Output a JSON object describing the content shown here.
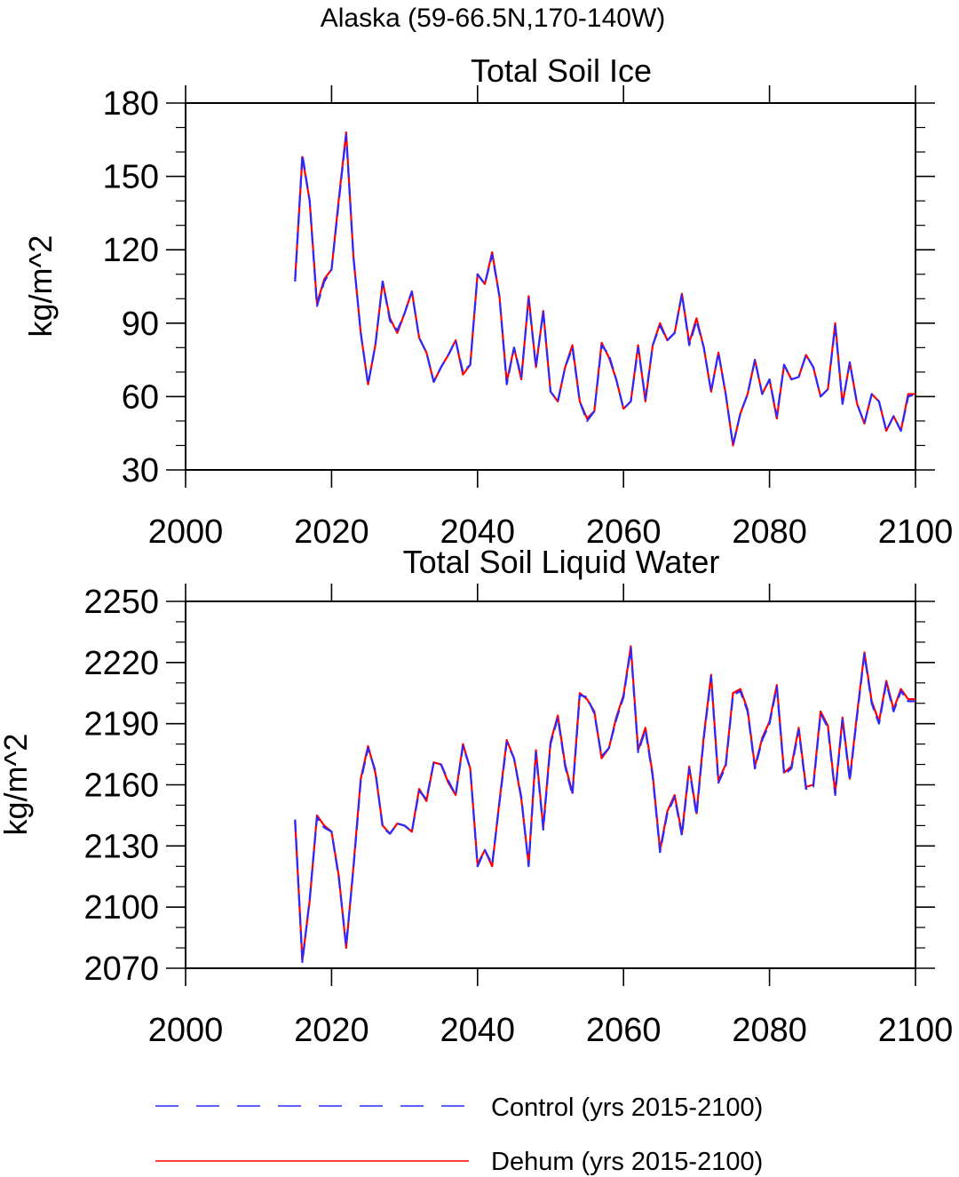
{
  "figure": {
    "suptitle": "Alaska (59-66.5N,170-140W)"
  },
  "legend": [
    {
      "label": "Control (yrs 2015-2100)",
      "color": "#2a2aff",
      "dash": "dashed"
    },
    {
      "label": "Dehum (yrs 2015-2100)",
      "color": "#ff0000",
      "dash": "solid"
    }
  ],
  "chart_data": [
    {
      "type": "line",
      "title": "Total Soil Ice",
      "xlabel": "",
      "ylabel": "kg/m^2",
      "xlim": [
        2000,
        2100
      ],
      "ylim": [
        30,
        180
      ],
      "xticks": [
        2000,
        2020,
        2040,
        2060,
        2080,
        2100
      ],
      "yticks": [
        30,
        60,
        90,
        120,
        150,
        180
      ],
      "x": [
        2015,
        2016,
        2017,
        2018,
        2019,
        2020,
        2021,
        2022,
        2023,
        2024,
        2025,
        2026,
        2027,
        2028,
        2029,
        2030,
        2031,
        2032,
        2033,
        2034,
        2035,
        2036,
        2037,
        2038,
        2039,
        2040,
        2041,
        2042,
        2043,
        2044,
        2045,
        2046,
        2047,
        2048,
        2049,
        2050,
        2051,
        2052,
        2053,
        2054,
        2055,
        2056,
        2057,
        2058,
        2059,
        2060,
        2061,
        2062,
        2063,
        2064,
        2065,
        2066,
        2067,
        2068,
        2069,
        2070,
        2071,
        2072,
        2073,
        2074,
        2075,
        2076,
        2077,
        2078,
        2079,
        2080,
        2081,
        2082,
        2083,
        2084,
        2085,
        2086,
        2087,
        2088,
        2089,
        2090,
        2091,
        2092,
        2093,
        2094,
        2095,
        2096,
        2097,
        2098,
        2099,
        2100
      ],
      "series": [
        {
          "name": "Control (yrs 2015-2100)",
          "values": [
            107,
            159,
            140,
            97,
            107,
            112,
            140,
            167,
            117,
            86,
            65,
            81,
            107,
            91,
            87,
            94,
            103,
            84,
            78,
            66,
            72,
            77,
            83,
            70,
            73,
            110,
            106,
            118,
            101,
            65,
            80,
            68,
            100,
            72,
            95,
            62,
            58,
            72,
            80,
            58,
            50,
            54,
            81,
            77,
            67,
            55,
            58,
            80,
            59,
            81,
            89,
            83,
            86,
            102,
            81,
            91,
            80,
            62,
            78,
            61,
            40,
            53,
            61,
            75,
            61,
            67,
            52,
            73,
            67,
            68,
            77,
            72,
            60,
            63,
            89,
            57,
            74,
            57,
            49,
            61,
            58,
            46,
            52,
            46,
            60,
            61
          ]
        },
        {
          "name": "Dehum (yrs 2015-2100)",
          "values": [
            108,
            158,
            140,
            98,
            108,
            112,
            141,
            168,
            117,
            86,
            65,
            81,
            107,
            92,
            86,
            94,
            103,
            84,
            78,
            66,
            72,
            77,
            83,
            69,
            73,
            110,
            106,
            119,
            101,
            66,
            80,
            67,
            101,
            72,
            95,
            62,
            58,
            72,
            81,
            58,
            51,
            54,
            82,
            76,
            67,
            55,
            58,
            81,
            58,
            81,
            90,
            83,
            86,
            102,
            82,
            92,
            80,
            62,
            78,
            61,
            40,
            53,
            61,
            75,
            61,
            67,
            51,
            73,
            67,
            68,
            77,
            72,
            60,
            63,
            90,
            57,
            74,
            57,
            49,
            61,
            58,
            46,
            52,
            46,
            61,
            61
          ]
        }
      ]
    },
    {
      "type": "line",
      "title": "Total Soil Liquid Water",
      "xlabel": "",
      "ylabel": "kg/m^2",
      "xlim": [
        2000,
        2100
      ],
      "ylim": [
        2070,
        2250
      ],
      "xticks": [
        2000,
        2020,
        2040,
        2060,
        2080,
        2100
      ],
      "yticks": [
        2070,
        2100,
        2130,
        2160,
        2190,
        2220,
        2250
      ],
      "x": [
        2015,
        2016,
        2017,
        2018,
        2019,
        2020,
        2021,
        2022,
        2023,
        2024,
        2025,
        2026,
        2027,
        2028,
        2029,
        2030,
        2031,
        2032,
        2033,
        2034,
        2035,
        2036,
        2037,
        2038,
        2039,
        2040,
        2041,
        2042,
        2043,
        2044,
        2045,
        2046,
        2047,
        2048,
        2049,
        2050,
        2051,
        2052,
        2053,
        2054,
        2055,
        2056,
        2057,
        2058,
        2059,
        2060,
        2061,
        2062,
        2063,
        2064,
        2065,
        2066,
        2067,
        2068,
        2069,
        2070,
        2071,
        2072,
        2073,
        2074,
        2075,
        2076,
        2077,
        2078,
        2079,
        2080,
        2081,
        2082,
        2083,
        2084,
        2085,
        2086,
        2087,
        2088,
        2089,
        2090,
        2091,
        2092,
        2093,
        2094,
        2095,
        2096,
        2097,
        2098,
        2099,
        2100
      ],
      "series": [
        {
          "name": "Control (yrs 2015-2100)",
          "values": [
            2143,
            2073,
            2104,
            2144,
            2139,
            2137,
            2114,
            2081,
            2119,
            2162,
            2178,
            2167,
            2139,
            2136,
            2141,
            2140,
            2137,
            2157,
            2153,
            2171,
            2170,
            2162,
            2155,
            2179,
            2168,
            2120,
            2128,
            2121,
            2151,
            2181,
            2173,
            2154,
            2120,
            2176,
            2138,
            2180,
            2193,
            2169,
            2155,
            2204,
            2203,
            2195,
            2174,
            2178,
            2192,
            2203,
            2227,
            2176,
            2187,
            2164,
            2127,
            2146,
            2154,
            2135,
            2168,
            2145,
            2183,
            2213,
            2161,
            2169,
            2204,
            2206,
            2196,
            2168,
            2182,
            2190,
            2208,
            2165,
            2168,
            2187,
            2158,
            2159,
            2195,
            2188,
            2155,
            2192,
            2162,
            2194,
            2224,
            2200,
            2190,
            2210,
            2196,
            2206,
            2201,
            2201
          ]
        },
        {
          "name": "Dehum (yrs 2015-2100)",
          "values": [
            2142,
            2074,
            2103,
            2145,
            2140,
            2137,
            2115,
            2080,
            2120,
            2163,
            2179,
            2166,
            2140,
            2136,
            2141,
            2140,
            2137,
            2158,
            2152,
            2171,
            2170,
            2161,
            2155,
            2180,
            2168,
            2121,
            2128,
            2120,
            2152,
            2182,
            2173,
            2153,
            2121,
            2177,
            2139,
            2181,
            2194,
            2170,
            2156,
            2205,
            2202,
            2196,
            2173,
            2178,
            2193,
            2204,
            2228,
            2177,
            2188,
            2165,
            2128,
            2147,
            2155,
            2136,
            2169,
            2146,
            2184,
            2214,
            2162,
            2170,
            2205,
            2207,
            2197,
            2169,
            2183,
            2191,
            2209,
            2166,
            2169,
            2188,
            2159,
            2160,
            2196,
            2189,
            2156,
            2193,
            2163,
            2195,
            2225,
            2201,
            2191,
            2211,
            2197,
            2207,
            2202,
            2202
          ]
        }
      ]
    }
  ]
}
